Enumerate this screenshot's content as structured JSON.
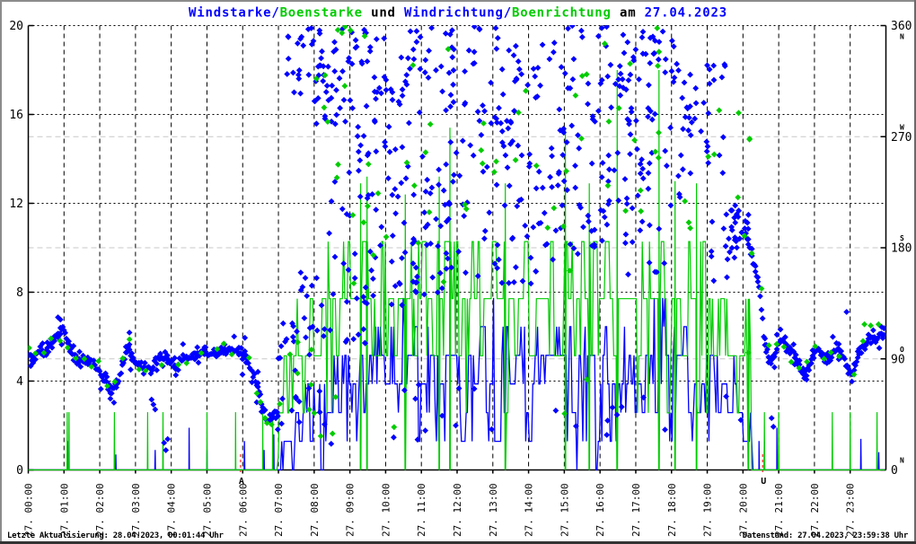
{
  "window": {
    "background": "#ffffff",
    "frame_top_left": "#8c8c8c",
    "frame_bottom": "#333333",
    "frame_right": "#6a6a6a"
  },
  "title": {
    "segments": [
      {
        "text": "Windstarke/",
        "color": "#0000ff"
      },
      {
        "text": "Boenstarke",
        "color": "#00cc00"
      },
      {
        "text": " und ",
        "color": "#000000"
      },
      {
        "text": "Windrichtung/",
        "color": "#0000ff"
      },
      {
        "text": "Boenrichtung",
        "color": "#00cc00"
      },
      {
        "text": " am ",
        "color": "#000000"
      },
      {
        "text": "27.04.2023",
        "color": "#0000ff"
      }
    ]
  },
  "status_bar": {
    "left": "Letzte Aktualisierung: 28.04.2023, 00:01:44 Uhr",
    "right": "Datenstand: 27.04.2023, 23:59:38 Uhr"
  },
  "colors": {
    "wind": "#0000ff",
    "gust": "#00cc00",
    "axis": "#000000",
    "grid_hour": "#000000",
    "grid_left": "#000000",
    "grid_right": "#c8c8c8",
    "sun_marker": "#ff0000"
  },
  "chart_data": {
    "type": "mixed",
    "title": "Windstarke/Boenstarke und Windrichtung/Boenrichtung am 27.04.2023",
    "render_seed": 20230427,
    "x_axis": {
      "start_hour": 0,
      "end_hour": 24,
      "grid_every_hour": true,
      "tick_labels": [
        "27. 00:00",
        "27. 01:00",
        "27. 02:00",
        "27. 03:00",
        "27. 04:00",
        "27. 05:00",
        "27. 06:00",
        "27. 07:00",
        "27. 08:00",
        "27. 09:00",
        "27. 10:00",
        "27. 11:00",
        "27. 12:00",
        "27. 13:00",
        "27. 14:00",
        "27. 15:00",
        "27. 16:00",
        "27. 17:00",
        "27. 18:00",
        "27. 19:00",
        "27. 20:00",
        "27. 21:00",
        "27. 22:00",
        "27. 23:00"
      ]
    },
    "y_left_axis": {
      "min": 0,
      "max": 20,
      "ticks": [
        0,
        4,
        8,
        12,
        16,
        20
      ],
      "grid_values": [
        4,
        8,
        12,
        16
      ]
    },
    "y_right_axis": {
      "min": 0,
      "max": 360,
      "ticks": [
        {
          "value": 0,
          "compass": "N"
        },
        {
          "value": 90,
          "compass": "O"
        },
        {
          "value": 180,
          "compass": "S"
        },
        {
          "value": 270,
          "compass": "W"
        },
        {
          "value": 360,
          "compass": "N"
        }
      ],
      "grid_values": [
        90,
        180,
        270
      ]
    },
    "sun_markers": [
      {
        "label": "A",
        "hour": 5.94
      },
      {
        "label": "U",
        "hour": 20.55
      }
    ],
    "series": [
      {
        "name": "Windstarke",
        "kind": "impulse_line",
        "axis": "left",
        "color": "#0000ff",
        "line_width": 1.3,
        "quantum": 1.29,
        "skew": 0.5,
        "persistence": 0.3,
        "envelope": [
          [
            0,
            0
          ],
          [
            6.98,
            0
          ],
          [
            7.05,
            1.3
          ],
          [
            7.4,
            2.6
          ],
          [
            8,
            3.9
          ],
          [
            9,
            5.2
          ],
          [
            10,
            6.5
          ],
          [
            10.35,
            7.8
          ],
          [
            10.7,
            6.5
          ],
          [
            12.9,
            6.5
          ],
          [
            13.1,
            7.8
          ],
          [
            13.45,
            6.5
          ],
          [
            17.35,
            6.5
          ],
          [
            17.7,
            7.8
          ],
          [
            18.1,
            6.5
          ],
          [
            18.6,
            5.8
          ],
          [
            19.5,
            5.2
          ],
          [
            20.0,
            3.9
          ],
          [
            20.25,
            2.0
          ],
          [
            20.3,
            0
          ],
          [
            24,
            0
          ]
        ],
        "spikes": [
          [
            1.1,
            1.3
          ],
          [
            2.45,
            0.7
          ],
          [
            3.55,
            0.9
          ],
          [
            4.5,
            1.9
          ],
          [
            5.0,
            0.9
          ],
          [
            6.05,
            1.3
          ],
          [
            6.6,
            0.9
          ],
          [
            6.87,
            1.6
          ],
          [
            20.45,
            1.3
          ],
          [
            20.6,
            1.3
          ],
          [
            20.95,
            1.9
          ],
          [
            23.3,
            1.4
          ],
          [
            23.8,
            0.8
          ]
        ]
      },
      {
        "name": "Boenstarke",
        "kind": "impulse_line",
        "axis": "left",
        "color": "#00cc00",
        "line_width": 1.2,
        "quantum": 2.57,
        "skew": 0.35,
        "persistence": 0.45,
        "envelope": [
          [
            0,
            0
          ],
          [
            6.98,
            0
          ],
          [
            7.1,
            5.2
          ],
          [
            7.9,
            7.8
          ],
          [
            8.25,
            10.3
          ],
          [
            19.2,
            10.3
          ],
          [
            19.75,
            7.8
          ],
          [
            20.2,
            7.8
          ],
          [
            20.28,
            0
          ],
          [
            24,
            0
          ]
        ],
        "spikes": [
          [
            1.09,
            2.6
          ],
          [
            1.14,
            2.6
          ],
          [
            2.41,
            2.6
          ],
          [
            3.34,
            2.6
          ],
          [
            3.77,
            2.6
          ],
          [
            5.0,
            2.6
          ],
          [
            5.8,
            2.6
          ],
          [
            6.56,
            2.6
          ],
          [
            6.84,
            2.6
          ],
          [
            9.3,
            12.9
          ],
          [
            9.48,
            13.2
          ],
          [
            10.55,
            12.4
          ],
          [
            11.5,
            13.2
          ],
          [
            11.8,
            15.4
          ],
          [
            13.35,
            12.9
          ],
          [
            15.03,
            15.4
          ],
          [
            15.7,
            12.9
          ],
          [
            16.48,
            18.0
          ],
          [
            17.65,
            18.0
          ],
          [
            18.1,
            13.0
          ],
          [
            18.7,
            12.9
          ],
          [
            20.15,
            7.7
          ],
          [
            20.6,
            2.6
          ],
          [
            21.0,
            2.6
          ],
          [
            22.5,
            2.6
          ],
          [
            23.0,
            2.6
          ],
          [
            23.75,
            2.6
          ]
        ]
      },
      {
        "name": "Windrichtung",
        "kind": "points",
        "axis": "right",
        "color": "#0000ff",
        "marker": "diamond",
        "path_step_hours": 0.0333,
        "path_jitter_deg": 3,
        "path_segments": [
          {
            "anchors": [
              [
                0,
                92
              ],
              [
                0.25,
                93
              ],
              [
                0.45,
                96
              ],
              [
                0.6,
                100
              ],
              [
                0.75,
                106
              ],
              [
                0.85,
                112
              ],
              [
                0.95,
                115
              ],
              [
                1.05,
                110
              ],
              [
                1.15,
                100
              ],
              [
                1.25,
                93
              ],
              [
                1.4,
                89
              ],
              [
                1.6,
                88
              ],
              [
                1.75,
                90
              ],
              [
                1.9,
                85
              ],
              [
                2.05,
                78
              ],
              [
                2.2,
                72
              ],
              [
                2.3,
                68
              ],
              [
                2.45,
                70
              ],
              [
                2.55,
                80
              ],
              [
                2.7,
                93
              ],
              [
                2.8,
                102
              ],
              [
                2.9,
                96
              ],
              [
                3.0,
                90
              ],
              [
                3.15,
                88
              ],
              [
                3.3,
                86
              ],
              [
                3.45,
                82
              ],
              [
                3.55,
                90
              ],
              [
                3.7,
                94
              ],
              [
                3.85,
                92
              ],
              [
                4.0,
                88
              ],
              [
                4.1,
                85
              ],
              [
                4.2,
                90
              ],
              [
                4.35,
                93
              ],
              [
                4.5,
                96
              ],
              [
                4.7,
                95
              ],
              [
                5.0,
                96
              ],
              [
                5.3,
                95
              ],
              [
                5.6,
                96
              ],
              [
                5.9,
                94
              ],
              [
                6.05,
                92
              ],
              [
                6.15,
                88
              ],
              [
                6.25,
                80
              ],
              [
                6.35,
                72
              ],
              [
                6.45,
                62
              ],
              [
                6.55,
                50
              ],
              [
                6.65,
                42
              ],
              [
                6.75,
                36
              ],
              [
                6.85,
                42
              ],
              [
                6.95,
                48
              ]
            ]
          },
          {
            "anchors": [
              [
                20.05,
                195
              ],
              [
                20.15,
                185
              ],
              [
                20.25,
                172
              ],
              [
                20.35,
                160
              ],
              [
                20.45,
                150
              ],
              [
                20.5,
                138
              ],
              [
                20.55,
                122
              ],
              [
                20.6,
                108
              ],
              [
                20.7,
                95
              ],
              [
                20.8,
                88
              ],
              [
                20.9,
                95
              ],
              [
                21.0,
                102
              ],
              [
                21.1,
                108
              ],
              [
                21.2,
                104
              ],
              [
                21.35,
                96
              ],
              [
                21.5,
                90
              ],
              [
                21.6,
                84
              ],
              [
                21.7,
                78
              ],
              [
                21.8,
                80
              ],
              [
                21.9,
                88
              ],
              [
                22.0,
                96
              ],
              [
                22.1,
                99
              ],
              [
                22.2,
                94
              ],
              [
                22.35,
                90
              ],
              [
                22.5,
                97
              ],
              [
                22.6,
                102
              ],
              [
                22.7,
                98
              ],
              [
                22.85,
                90
              ],
              [
                22.95,
                82
              ],
              [
                23.05,
                78
              ],
              [
                23.15,
                88
              ],
              [
                23.25,
                97
              ],
              [
                23.35,
                102
              ],
              [
                23.5,
                106
              ],
              [
                23.6,
                110
              ],
              [
                23.7,
                107
              ],
              [
                23.8,
                112
              ],
              [
                23.9,
                110
              ],
              [
                23.97,
                113
              ]
            ]
          }
        ],
        "scatter_boxes": [
          [
            6.95,
            7.6,
            30,
            120,
            22
          ],
          [
            7.0,
            7.9,
            300,
            360,
            16
          ],
          [
            7.6,
            8.4,
            60,
            170,
            18
          ],
          [
            7.9,
            9.2,
            280,
            360,
            50
          ],
          [
            8.4,
            9.5,
            100,
            250,
            30
          ],
          [
            9.2,
            10.5,
            250,
            360,
            45
          ],
          [
            9.5,
            11.0,
            130,
            260,
            40
          ],
          [
            10.5,
            12.2,
            270,
            360,
            35
          ],
          [
            11.0,
            12.5,
            140,
            270,
            45
          ],
          [
            12.2,
            13.6,
            280,
            360,
            28
          ],
          [
            12.5,
            14.5,
            150,
            285,
            55
          ],
          [
            13.6,
            15.2,
            290,
            360,
            25
          ],
          [
            14.5,
            16.2,
            170,
            300,
            50
          ],
          [
            15.2,
            16.8,
            300,
            360,
            22
          ],
          [
            16.2,
            18.3,
            210,
            330,
            60
          ],
          [
            16.8,
            18.2,
            330,
            360,
            18
          ],
          [
            16.5,
            18.0,
            150,
            205,
            12
          ],
          [
            18.3,
            19.5,
            240,
            330,
            35
          ],
          [
            19.0,
            19.8,
            150,
            210,
            14
          ],
          [
            19.6,
            20.2,
            175,
            215,
            20
          ],
          [
            7.5,
            20.0,
            20,
            70,
            25
          ]
        ],
        "outliers": [
          [
            3.45,
            57
          ],
          [
            3.5,
            53
          ],
          [
            3.55,
            49
          ],
          [
            3.8,
            22
          ],
          [
            3.85,
            16
          ],
          [
            3.9,
            25
          ],
          [
            20.8,
            42
          ],
          [
            20.85,
            35
          ],
          [
            22.9,
            128
          ]
        ]
      },
      {
        "name": "Boenrichtung",
        "kind": "points",
        "axis": "right",
        "color": "#00cc00",
        "marker": "diamond",
        "companion_of": "Windrichtung",
        "companion_step_hours": 0.22,
        "companion_jitter_deg": 9,
        "companion_prob": 0.8,
        "scatter_boxes": [
          [
            7.0,
            8.0,
            40,
            120,
            6
          ],
          [
            7.9,
            9.5,
            280,
            360,
            10
          ],
          [
            8.4,
            10.5,
            140,
            260,
            10
          ],
          [
            10.5,
            13.0,
            150,
            360,
            14
          ],
          [
            13.0,
            15.5,
            160,
            320,
            14
          ],
          [
            15.5,
            18.3,
            200,
            360,
            16
          ],
          [
            18.3,
            20.2,
            160,
            300,
            10
          ],
          [
            7.5,
            20.0,
            25,
            75,
            8
          ]
        ],
        "outliers": [
          [
            6.5,
            55
          ],
          [
            6.68,
            38
          ],
          [
            20.15,
            95
          ],
          [
            23.4,
            118
          ]
        ]
      }
    ]
  }
}
